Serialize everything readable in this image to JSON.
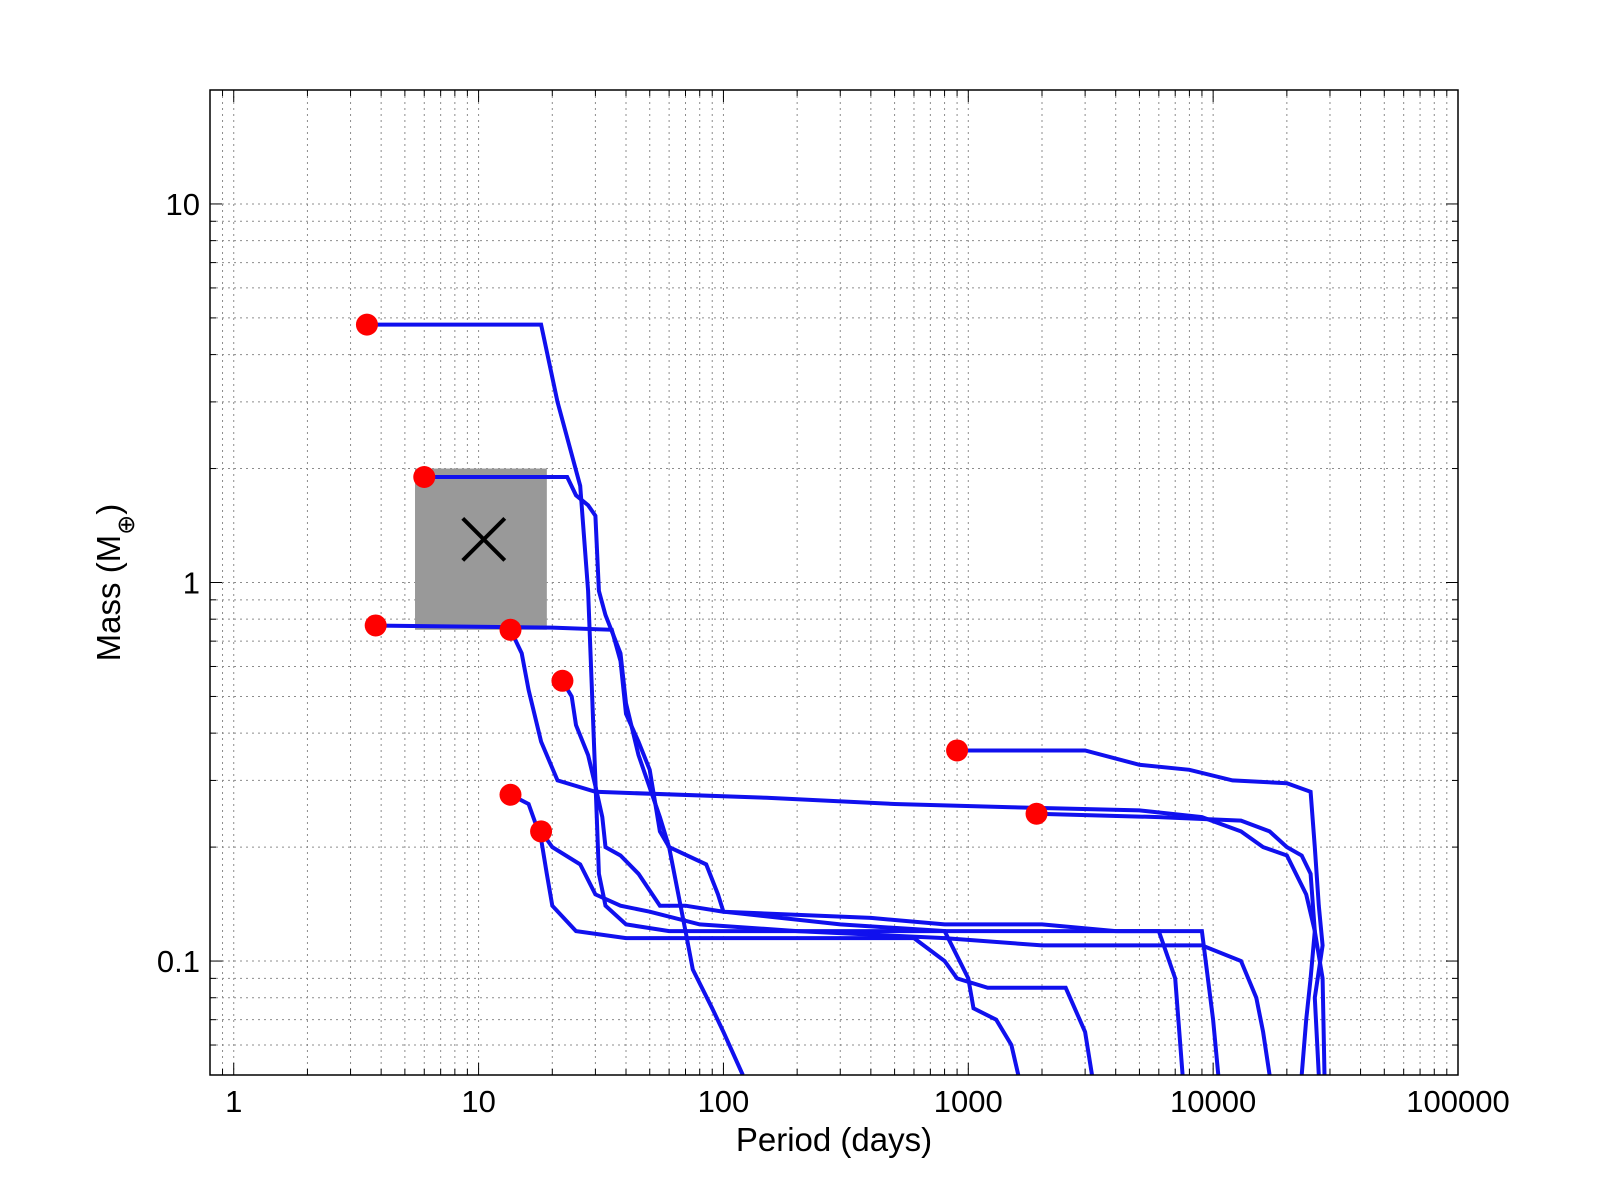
{
  "chart_data": {
    "type": "line",
    "xlabel": "Period (days)",
    "ylabel": "Mass (M",
    "ylabel_subscript": "⊕",
    "ylabel_suffix": ")",
    "xscale": "log",
    "yscale": "log",
    "xlim": [
      0.8,
      100000
    ],
    "ylim": [
      0.05,
      20
    ],
    "grid": true,
    "legend": "none",
    "x_ticks": [
      1,
      10,
      100,
      1000,
      10000,
      100000
    ],
    "x_tick_labels": [
      "1",
      "10",
      "100",
      "1000",
      "10000",
      "100000"
    ],
    "y_ticks": [
      0.1,
      1,
      10
    ],
    "y_tick_labels": [
      "0.1",
      "1",
      "10"
    ],
    "colors": {
      "series": "#1010ee",
      "start_marker": "#ff0000",
      "region": "#999999",
      "cross": "#000000"
    },
    "shaded_region": {
      "x": [
        5.5,
        19
      ],
      "y": [
        0.75,
        2.0
      ]
    },
    "cross_marker": {
      "x": 10.5,
      "y": 1.3
    },
    "start_points": [
      {
        "x": 3.5,
        "y": 4.8
      },
      {
        "x": 6.0,
        "y": 1.9
      },
      {
        "x": 3.8,
        "y": 0.77
      },
      {
        "x": 13.5,
        "y": 0.75
      },
      {
        "x": 22,
        "y": 0.55
      },
      {
        "x": 900,
        "y": 0.36
      },
      {
        "x": 1900,
        "y": 0.245
      },
      {
        "x": 13.5,
        "y": 0.275
      },
      {
        "x": 18,
        "y": 0.22
      }
    ],
    "series": [
      {
        "values": [
          [
            3.5,
            4.8
          ],
          [
            18,
            4.8
          ],
          [
            21,
            3.0
          ],
          [
            26,
            1.8
          ],
          [
            28,
            0.95
          ],
          [
            30,
            0.3
          ],
          [
            31,
            0.17
          ],
          [
            33,
            0.14
          ],
          [
            40,
            0.125
          ],
          [
            60,
            0.12
          ],
          [
            150,
            0.12
          ],
          [
            500,
            0.12
          ],
          [
            2000,
            0.12
          ],
          [
            9000,
            0.12
          ],
          [
            10000,
            0.07
          ],
          [
            10500,
            0.05
          ]
        ]
      },
      {
        "values": [
          [
            6,
            1.9
          ],
          [
            23,
            1.9
          ],
          [
            25,
            1.7
          ],
          [
            28,
            1.6
          ],
          [
            30,
            1.5
          ],
          [
            31,
            0.95
          ],
          [
            33,
            0.82
          ],
          [
            38,
            0.65
          ],
          [
            40,
            0.48
          ],
          [
            45,
            0.35
          ],
          [
            55,
            0.24
          ],
          [
            60,
            0.2
          ],
          [
            70,
            0.12
          ],
          [
            75,
            0.095
          ],
          [
            90,
            0.075
          ],
          [
            100,
            0.065
          ],
          [
            120,
            0.05
          ]
        ]
      },
      {
        "values": [
          [
            3.8,
            0.77
          ],
          [
            20,
            0.76
          ],
          [
            35,
            0.75
          ],
          [
            38,
            0.62
          ],
          [
            40,
            0.45
          ],
          [
            45,
            0.38
          ],
          [
            50,
            0.32
          ],
          [
            55,
            0.22
          ],
          [
            60,
            0.2
          ],
          [
            85,
            0.18
          ],
          [
            95,
            0.15
          ],
          [
            100,
            0.135
          ],
          [
            300,
            0.125
          ],
          [
            800,
            0.12
          ],
          [
            1000,
            0.09
          ],
          [
            1050,
            0.075
          ],
          [
            1300,
            0.07
          ],
          [
            1500,
            0.06
          ],
          [
            1600,
            0.05
          ]
        ]
      },
      {
        "values": [
          [
            13.5,
            0.75
          ],
          [
            15,
            0.65
          ],
          [
            16,
            0.52
          ],
          [
            18,
            0.38
          ],
          [
            21,
            0.3
          ],
          [
            30,
            0.28
          ],
          [
            150,
            0.27
          ],
          [
            500,
            0.26
          ],
          [
            1500,
            0.255
          ],
          [
            5000,
            0.25
          ],
          [
            9000,
            0.24
          ],
          [
            13000,
            0.22
          ],
          [
            16000,
            0.2
          ],
          [
            20000,
            0.19
          ],
          [
            24000,
            0.15
          ],
          [
            26000,
            0.12
          ],
          [
            28000,
            0.09
          ],
          [
            28500,
            0.05
          ]
        ]
      },
      {
        "values": [
          [
            22,
            0.55
          ],
          [
            24,
            0.5
          ],
          [
            25,
            0.42
          ],
          [
            28,
            0.35
          ],
          [
            30,
            0.29
          ],
          [
            32,
            0.24
          ],
          [
            33,
            0.2
          ],
          [
            38,
            0.19
          ],
          [
            45,
            0.17
          ],
          [
            55,
            0.14
          ],
          [
            70,
            0.14
          ],
          [
            100,
            0.135
          ],
          [
            400,
            0.13
          ],
          [
            800,
            0.125
          ],
          [
            2000,
            0.125
          ],
          [
            4000,
            0.12
          ],
          [
            6000,
            0.12
          ],
          [
            7000,
            0.09
          ],
          [
            7500,
            0.05
          ]
        ]
      },
      {
        "values": [
          [
            900,
            0.36
          ],
          [
            3000,
            0.36
          ],
          [
            5000,
            0.33
          ],
          [
            8000,
            0.32
          ],
          [
            12000,
            0.3
          ],
          [
            20000,
            0.295
          ],
          [
            25000,
            0.28
          ],
          [
            26000,
            0.2
          ],
          [
            27000,
            0.14
          ],
          [
            28000,
            0.11
          ],
          [
            26000,
            0.08
          ],
          [
            27000,
            0.05
          ]
        ]
      },
      {
        "values": [
          [
            1900,
            0.245
          ],
          [
            6000,
            0.24
          ],
          [
            13000,
            0.235
          ],
          [
            17000,
            0.22
          ],
          [
            20000,
            0.2
          ],
          [
            23000,
            0.19
          ],
          [
            25000,
            0.17
          ],
          [
            26000,
            0.12
          ],
          [
            25000,
            0.09
          ],
          [
            24000,
            0.07
          ],
          [
            23000,
            0.05
          ]
        ]
      },
      {
        "values": [
          [
            13.5,
            0.275
          ],
          [
            16,
            0.26
          ],
          [
            18,
            0.21
          ],
          [
            19,
            0.17
          ],
          [
            20,
            0.14
          ],
          [
            25,
            0.12
          ],
          [
            40,
            0.115
          ],
          [
            100,
            0.115
          ],
          [
            600,
            0.115
          ],
          [
            800,
            0.1
          ],
          [
            900,
            0.09
          ],
          [
            1200,
            0.085
          ],
          [
            2500,
            0.085
          ],
          [
            3000,
            0.065
          ],
          [
            3200,
            0.05
          ]
        ]
      },
      {
        "values": [
          [
            18,
            0.22
          ],
          [
            20,
            0.2
          ],
          [
            26,
            0.18
          ],
          [
            30,
            0.15
          ],
          [
            38,
            0.14
          ],
          [
            50,
            0.135
          ],
          [
            80,
            0.125
          ],
          [
            200,
            0.12
          ],
          [
            800,
            0.115
          ],
          [
            2000,
            0.11
          ],
          [
            9000,
            0.11
          ],
          [
            13000,
            0.1
          ],
          [
            15000,
            0.08
          ],
          [
            16000,
            0.065
          ],
          [
            17000,
            0.05
          ]
        ]
      }
    ]
  }
}
